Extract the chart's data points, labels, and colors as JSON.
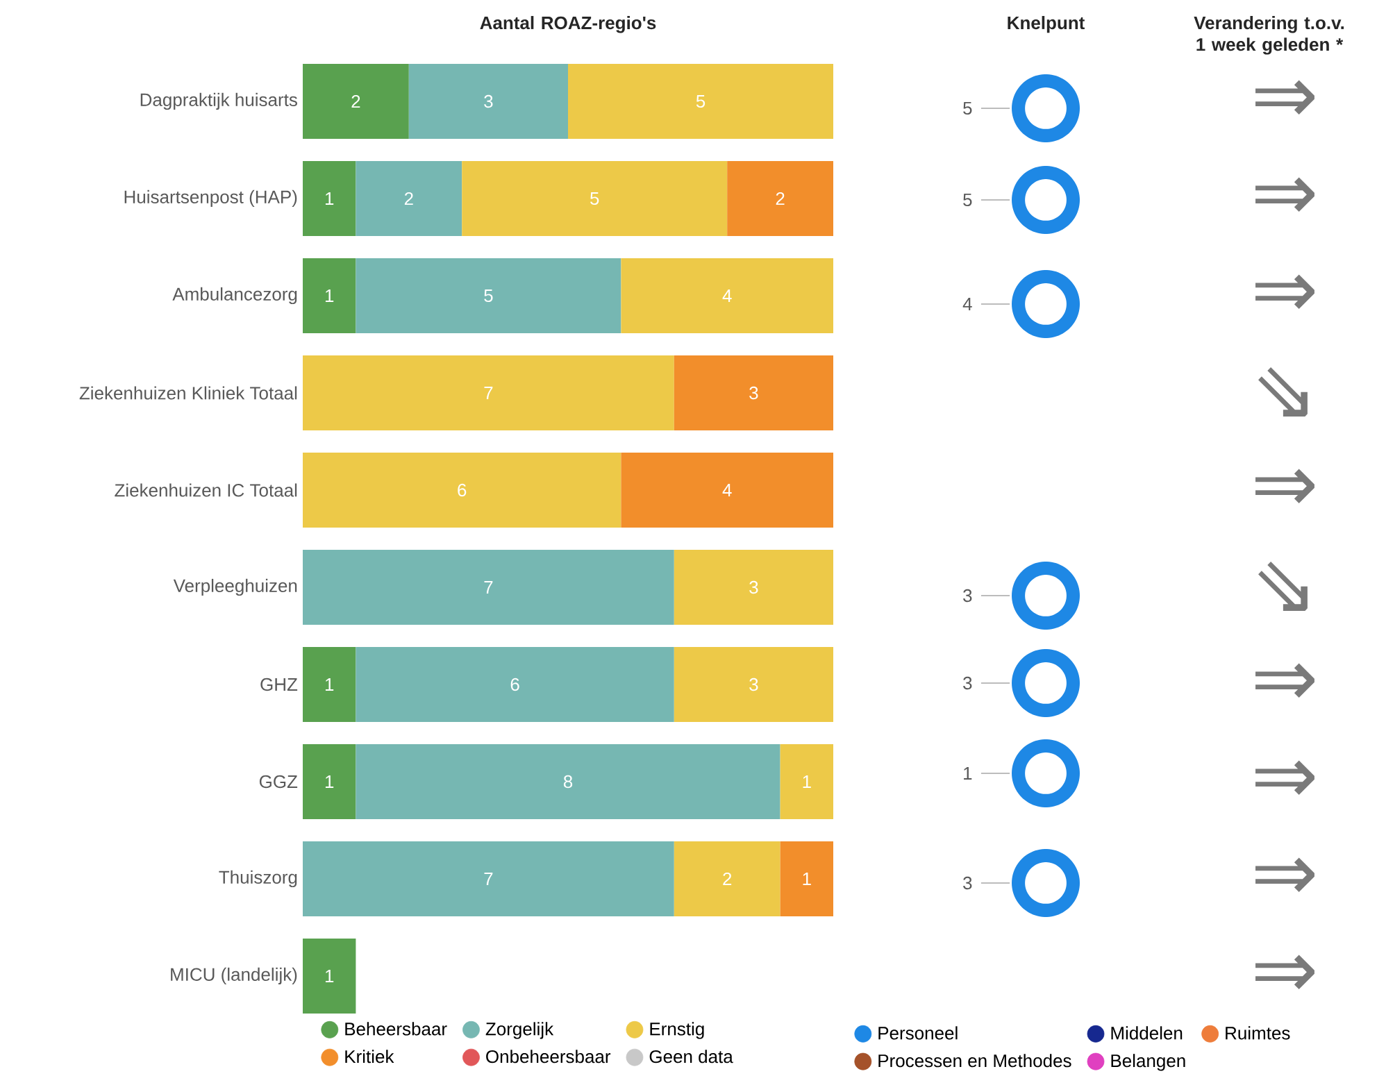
{
  "chart_data": [
    {
      "type": "bar",
      "orientation": "horizontal",
      "stacked": true,
      "title": "Aantal ROAZ-regio's",
      "categories": [
        "Dagpraktijk huisarts",
        "Huisartsenpost (HAP)",
        "Ambulancezorg",
        "Ziekenhuizen Kliniek Totaal",
        "Ziekenhuizen IC Totaal",
        "Verpleeghuizen",
        "GHZ",
        "GGZ",
        "Thuiszorg",
        "MICU (landelijk)"
      ],
      "series": [
        {
          "name": "Beheersbaar",
          "color": "#59a14f",
          "values": [
            2,
            1,
            1,
            null,
            null,
            null,
            1,
            1,
            null,
            1
          ]
        },
        {
          "name": "Zorgelijk",
          "color": "#76b7b2",
          "values": [
            3,
            2,
            5,
            null,
            null,
            7,
            6,
            8,
            7,
            null
          ]
        },
        {
          "name": "Ernstig",
          "color": "#edc948",
          "values": [
            5,
            5,
            4,
            7,
            6,
            3,
            3,
            1,
            2,
            null
          ]
        },
        {
          "name": "Kritiek",
          "color": "#f28e2b",
          "values": [
            null,
            2,
            null,
            3,
            4,
            null,
            null,
            null,
            1,
            null
          ]
        },
        {
          "name": "Onbeheersbaar",
          "color": "#e15759",
          "values": [
            null,
            null,
            null,
            null,
            null,
            null,
            null,
            null,
            null,
            null
          ]
        },
        {
          "name": "Geen data",
          "color": "#c8c8c8",
          "values": [
            null,
            null,
            null,
            null,
            null,
            null,
            null,
            null,
            null,
            null
          ]
        }
      ],
      "xlim": [
        0,
        10
      ],
      "data_labels": true,
      "legend": "bottom"
    },
    {
      "type": "donut",
      "title": "Knelpunt",
      "categories": [
        null
      ],
      "values": [
        5
      ],
      "colors": [
        "#1e88e5"
      ],
      "data_labels": true
    },
    {
      "type": "donut",
      "categories": [
        null
      ],
      "values": [
        5
      ],
      "colors": [
        "#1e88e5"
      ],
      "data_labels": true
    },
    {
      "type": "donut",
      "categories": [
        null
      ],
      "values": [
        4
      ],
      "colors": [
        "#1e88e5"
      ],
      "data_labels": true
    },
    {
      "type": "donut",
      "categories": [
        null
      ],
      "values": [
        3
      ],
      "colors": [
        "#1e88e5"
      ],
      "data_labels": true
    },
    {
      "type": "donut",
      "categories": [
        null
      ],
      "values": [
        3
      ],
      "colors": [
        "#1e88e5"
      ],
      "data_labels": true
    },
    {
      "type": "donut",
      "categories": [
        null
      ],
      "values": [
        1
      ],
      "colors": [
        "#1e88e5"
      ],
      "data_labels": true
    },
    {
      "type": "donut",
      "categories": [
        "Personeel",
        "Middelen",
        "Ruimtes",
        "Processen en Methodes",
        "Belangen"
      ],
      "values": [
        3,
        null,
        null,
        null,
        null
      ],
      "colors": [
        "#1e88e5",
        "#16288f",
        "#ee7d3b",
        "#a5522a",
        "#e040c0"
      ],
      "data_labels": true,
      "legend": "bottom"
    },
    {
      "type": "other",
      "title": "Verandering t.o.v. 1 week geleden *",
      "categories": [
        null,
        null,
        null,
        null,
        null,
        null,
        null,
        null,
        null,
        null
      ],
      "annotations": [
        "⇒",
        "⇒",
        "⇒",
        "⇘",
        "⇒",
        "⇘",
        "⇒",
        "⇒",
        "⇒",
        "⇒"
      ]
    }
  ]
}
